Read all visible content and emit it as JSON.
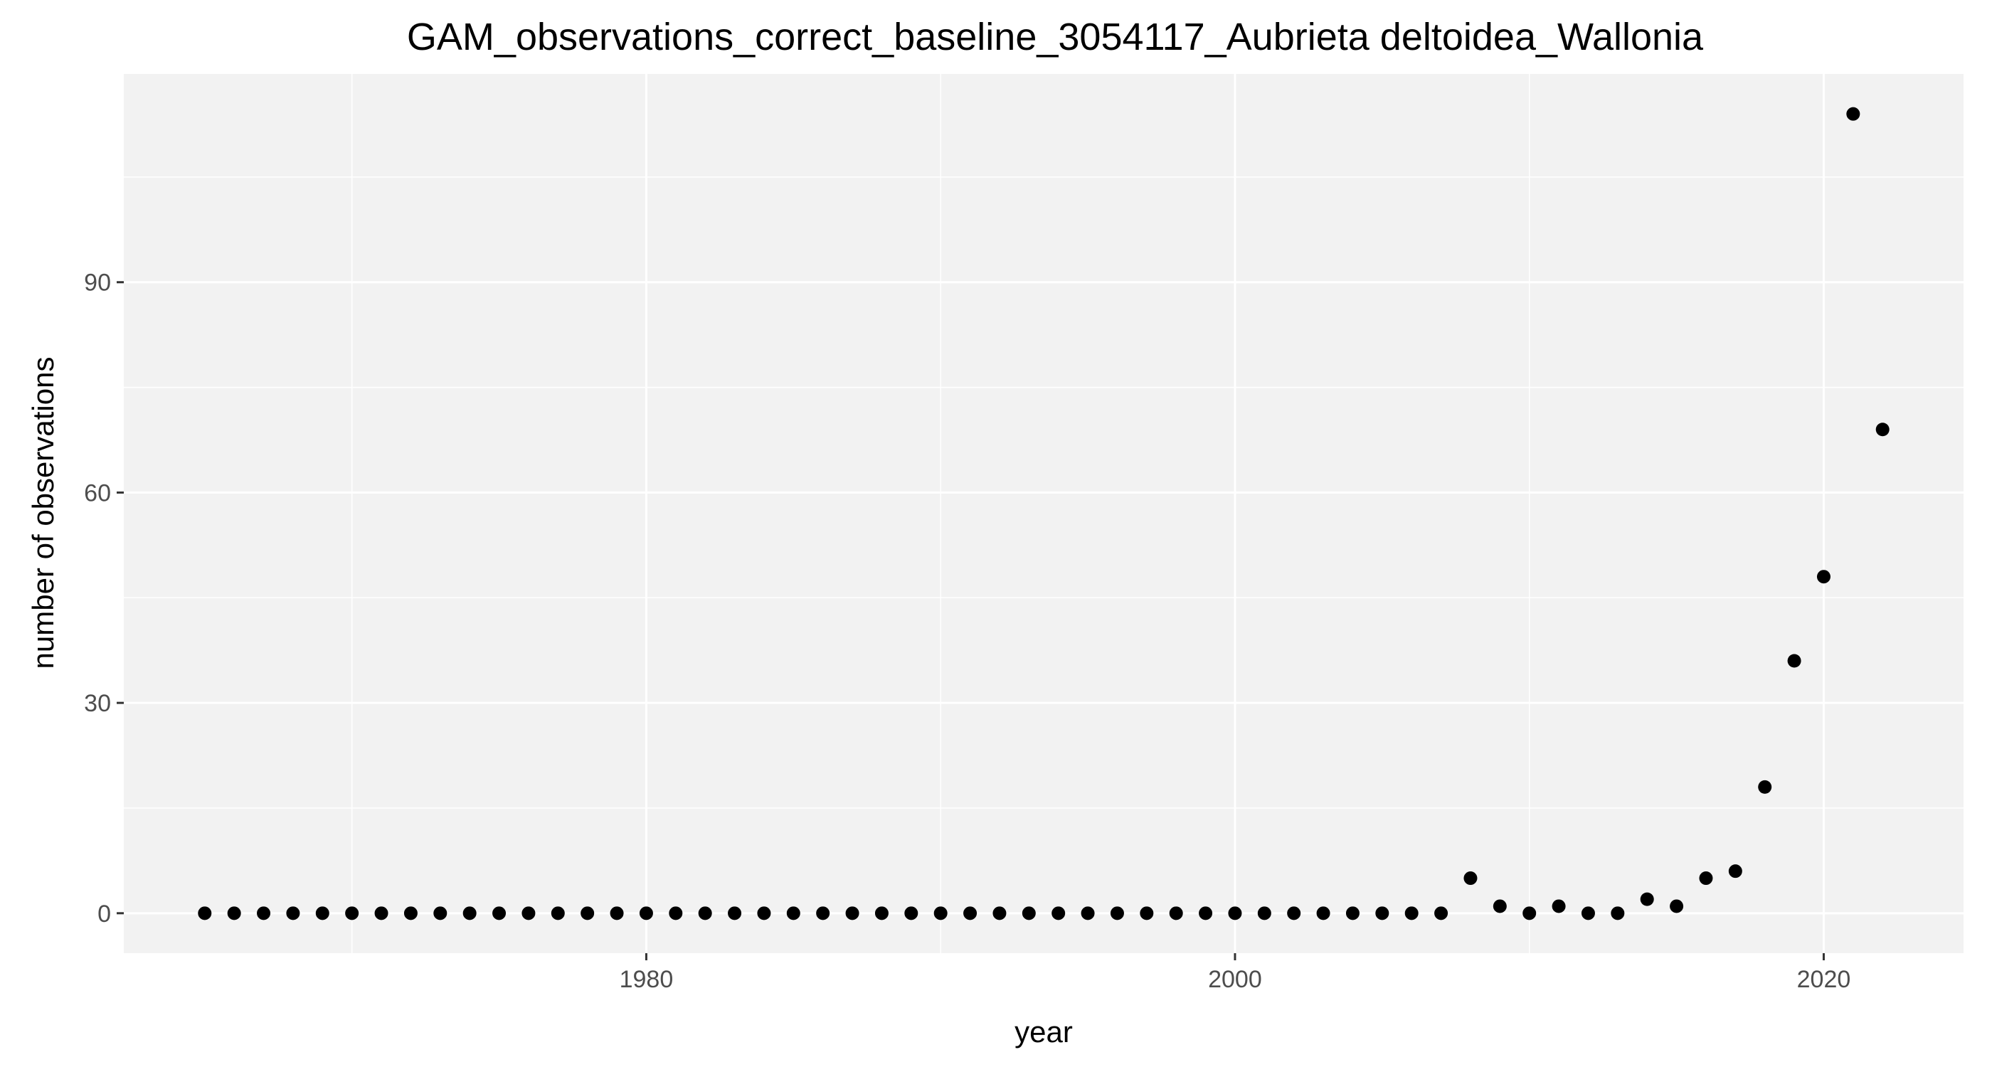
{
  "chart_data": {
    "type": "scatter",
    "title": "GAM_observations_correct_baseline_3054117_Aubrieta deltoidea_Wallonia",
    "xlabel": "year",
    "ylabel": "number of observations",
    "xlim": [
      1962.25,
      2024.75
    ],
    "ylim": [
      -5.7,
      119.7
    ],
    "x_ticks": [
      1980,
      2000,
      2020
    ],
    "x_minor_ticks": [
      1970,
      1990,
      2010
    ],
    "y_ticks": [
      0,
      30,
      60,
      90
    ],
    "y_minor_ticks": [
      15,
      45,
      75,
      105
    ],
    "grid": true,
    "point_color": "#000000",
    "panel_color": "#f2f2f2",
    "grid_color": "#ffffff",
    "x": [
      1965,
      1966,
      1967,
      1968,
      1969,
      1970,
      1971,
      1972,
      1973,
      1974,
      1975,
      1976,
      1977,
      1978,
      1979,
      1980,
      1981,
      1982,
      1983,
      1984,
      1985,
      1986,
      1987,
      1988,
      1989,
      1990,
      1991,
      1992,
      1993,
      1994,
      1995,
      1996,
      1997,
      1998,
      1999,
      2000,
      2001,
      2002,
      2003,
      2004,
      2005,
      2006,
      2007,
      2008,
      2009,
      2010,
      2011,
      2012,
      2013,
      2014,
      2015,
      2016,
      2017,
      2018,
      2019,
      2020,
      2021,
      2022
    ],
    "y": [
      0,
      0,
      0,
      0,
      0,
      0,
      0,
      0,
      0,
      0,
      0,
      0,
      0,
      0,
      0,
      0,
      0,
      0,
      0,
      0,
      0,
      0,
      0,
      0,
      0,
      0,
      0,
      0,
      0,
      0,
      0,
      0,
      0,
      0,
      0,
      0,
      0,
      0,
      0,
      0,
      0,
      0,
      0,
      5,
      1,
      0,
      1,
      0,
      0,
      2,
      1,
      5,
      6,
      18,
      36,
      48,
      114,
      69
    ]
  }
}
